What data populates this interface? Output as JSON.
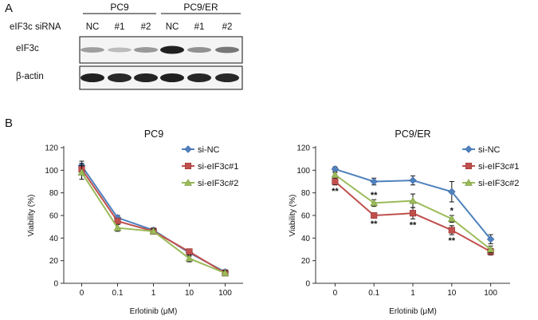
{
  "figure": {
    "panel_a_label": "A",
    "panel_b_label": "B"
  },
  "blot": {
    "cell_lines": [
      "PC9",
      "PC9/ER"
    ],
    "sirna_label": "eIF3c siRNA",
    "lanes": [
      "NC",
      "#1",
      "#2",
      "NC",
      "#1",
      "#2"
    ],
    "rows": [
      {
        "label": "eIF3c",
        "intensities": [
          0.35,
          0.2,
          0.38,
          1.0,
          0.42,
          0.55
        ]
      },
      {
        "label": "β-actin",
        "intensities": [
          1.0,
          0.95,
          0.98,
          1.0,
          0.97,
          0.96
        ]
      }
    ]
  },
  "chart_data": [
    {
      "type": "line",
      "title": "PC9",
      "xlabel": "Erlotinib (μM)",
      "ylabel": "Viability (%)",
      "x": [
        "0",
        "0.1",
        "1",
        "10",
        "100"
      ],
      "ylim": [
        0,
        120
      ],
      "yticks": [
        0,
        20,
        40,
        60,
        80,
        100,
        120
      ],
      "legend_position": "top-right",
      "series": [
        {
          "name": "si-NC",
          "color": "#4f81bd",
          "marker": "diamond",
          "values": [
            104,
            58,
            47,
            27,
            10
          ],
          "errors": [
            4,
            2,
            2,
            3,
            2
          ]
        },
        {
          "name": "si-eIF3c#1",
          "color": "#c0504d",
          "marker": "square",
          "values": [
            101,
            55,
            46,
            28,
            9
          ],
          "errors": [
            5,
            2,
            2,
            2,
            2
          ]
        },
        {
          "name": "si-eIF3c#2",
          "color": "#9bbb59",
          "marker": "triangle",
          "values": [
            98,
            49,
            46,
            22,
            9
          ],
          "errors": [
            6,
            3,
            2,
            3,
            2
          ]
        }
      ],
      "annotations": []
    },
    {
      "type": "line",
      "title": "PC9/ER",
      "xlabel": "Erlotinib (μM)",
      "ylabel": "Viability (%)",
      "x": [
        "0",
        "0.1",
        "1",
        "10",
        "100"
      ],
      "ylim": [
        0,
        120
      ],
      "yticks": [
        0,
        20,
        40,
        60,
        80,
        100,
        120
      ],
      "legend_position": "top-right",
      "series": [
        {
          "name": "si-NC",
          "color": "#4f81bd",
          "marker": "diamond",
          "values": [
            101,
            90,
            91,
            81,
            39
          ],
          "errors": [
            2,
            3,
            4,
            9,
            4
          ]
        },
        {
          "name": "si-eIF3c#1",
          "color": "#c0504d",
          "marker": "square",
          "values": [
            90,
            60,
            62,
            47,
            28
          ],
          "errors": [
            3,
            2,
            5,
            4,
            3
          ]
        },
        {
          "name": "si-eIF3c#2",
          "color": "#9bbb59",
          "marker": "triangle",
          "values": [
            96,
            71,
            73,
            57,
            30
          ],
          "errors": [
            2,
            3,
            6,
            3,
            3
          ]
        }
      ],
      "annotations": [
        {
          "x_index": 0,
          "text": "**",
          "placement": "below-lower"
        },
        {
          "x_index": 1,
          "text": "**",
          "placement": "above-upper"
        },
        {
          "x_index": 1,
          "text": "**",
          "placement": "below-lower"
        },
        {
          "x_index": 2,
          "text": "**",
          "placement": "below-lower"
        },
        {
          "x_index": 3,
          "text": "*",
          "placement": "between"
        },
        {
          "x_index": 3,
          "text": "**",
          "placement": "below-lower"
        }
      ]
    }
  ]
}
